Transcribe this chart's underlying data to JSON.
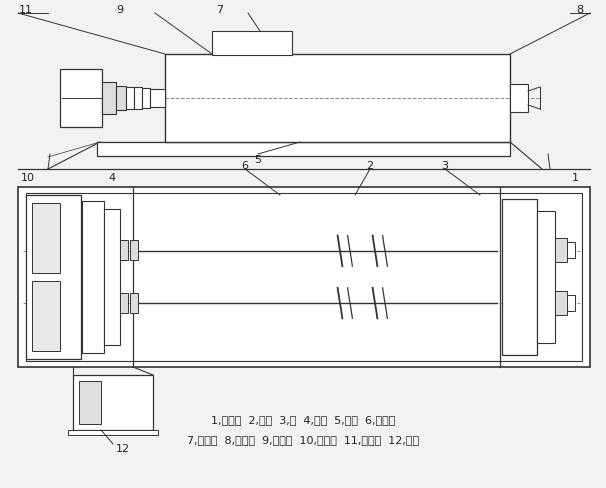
{
  "background_color": "#f2f2f2",
  "line_color": "#333333",
  "dash_color": "#555555",
  "text_color": "#222222",
  "caption_line1": "1,卸料口  2,叶片  3,轴  4,底架  5,机壳  6,加湿器",
  "caption_line2": "7,进料口  8,轴承座  9,齿轮箱  10,联轴器  11,减速机  12,电机"
}
